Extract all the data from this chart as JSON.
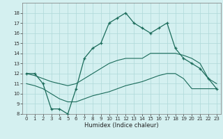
{
  "xlabel": "Humidex (Indice chaleur)",
  "bg_color": "#d4f0f0",
  "grid_color": "#aed8d8",
  "line_color": "#1a6b5a",
  "ylim": [
    8,
    19
  ],
  "xlim": [
    -0.5,
    23.5
  ],
  "yticks": [
    8,
    9,
    10,
    11,
    12,
    13,
    14,
    15,
    16,
    17,
    18
  ],
  "xticks": [
    0,
    1,
    2,
    3,
    4,
    5,
    6,
    7,
    8,
    9,
    10,
    11,
    12,
    13,
    14,
    15,
    16,
    17,
    18,
    19,
    20,
    21,
    22,
    23
  ],
  "main_x": [
    0,
    1,
    2,
    3,
    4,
    5,
    6,
    7,
    8,
    9,
    10,
    11,
    12,
    13,
    14,
    15,
    16,
    17,
    18,
    19,
    20,
    21,
    22,
    23
  ],
  "main_y": [
    12.0,
    12.0,
    11.0,
    8.5,
    8.5,
    8.0,
    10.5,
    13.5,
    14.5,
    15.0,
    17.0,
    17.5,
    18.0,
    17.0,
    16.5,
    16.0,
    16.5,
    17.0,
    14.5,
    13.5,
    13.0,
    12.5,
    11.5,
    10.5
  ],
  "upper_x": [
    0,
    1,
    2,
    3,
    4,
    5,
    6,
    7,
    8,
    9,
    10,
    11,
    12,
    13,
    14,
    15,
    16,
    17,
    18,
    19,
    20,
    21,
    22,
    23
  ],
  "upper_y": [
    12.0,
    11.8,
    11.5,
    11.2,
    11.0,
    10.8,
    11.0,
    11.5,
    12.0,
    12.5,
    13.0,
    13.3,
    13.5,
    13.5,
    13.5,
    14.0,
    14.0,
    14.0,
    14.0,
    13.8,
    13.5,
    13.0,
    11.5,
    11.0
  ],
  "lower_x": [
    0,
    1,
    2,
    3,
    4,
    5,
    6,
    7,
    8,
    9,
    10,
    11,
    12,
    13,
    14,
    15,
    16,
    17,
    18,
    19,
    20,
    21,
    22,
    23
  ],
  "lower_y": [
    11.0,
    10.8,
    10.5,
    10.0,
    9.5,
    9.2,
    9.2,
    9.5,
    9.8,
    10.0,
    10.2,
    10.5,
    10.8,
    11.0,
    11.2,
    11.5,
    11.8,
    12.0,
    12.0,
    11.5,
    10.5,
    10.5,
    10.5,
    10.5
  ]
}
